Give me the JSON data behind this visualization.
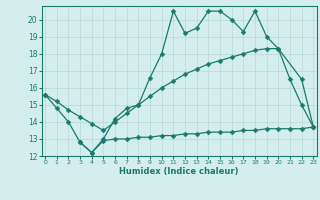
{
  "line1_x": [
    0,
    1,
    2,
    3,
    4,
    5,
    6,
    7,
    8,
    9,
    10,
    11,
    12,
    13,
    14,
    15,
    16,
    17,
    18,
    19,
    20,
    21,
    22,
    23
  ],
  "line1_y": [
    15.6,
    14.8,
    14.0,
    12.8,
    12.2,
    13.0,
    14.2,
    14.8,
    15.0,
    16.6,
    18.0,
    20.5,
    19.2,
    19.5,
    20.5,
    20.5,
    20.0,
    19.3,
    20.5,
    19.0,
    18.3,
    16.5,
    15.0,
    13.7
  ],
  "line2_x": [
    0,
    1,
    2,
    3,
    4,
    5,
    6,
    7,
    8,
    9,
    10,
    11,
    12,
    13,
    14,
    15,
    16,
    17,
    18,
    19,
    20,
    22,
    23
  ],
  "line2_y": [
    15.6,
    15.2,
    14.7,
    14.3,
    13.9,
    13.5,
    14.0,
    14.5,
    15.0,
    15.5,
    16.0,
    16.4,
    16.8,
    17.1,
    17.4,
    17.6,
    17.8,
    18.0,
    18.2,
    18.3,
    18.3,
    16.5,
    13.7
  ],
  "line3_x": [
    3,
    4,
    5,
    6,
    7,
    8,
    9,
    10,
    11,
    12,
    13,
    14,
    15,
    16,
    17,
    18,
    19,
    20,
    21,
    22,
    23
  ],
  "line3_y": [
    12.8,
    12.2,
    12.9,
    13.0,
    13.0,
    13.1,
    13.1,
    13.2,
    13.2,
    13.3,
    13.3,
    13.4,
    13.4,
    13.4,
    13.5,
    13.5,
    13.6,
    13.6,
    13.6,
    13.6,
    13.7
  ],
  "color": "#1a7a6e",
  "bg_color": "#d4eeed",
  "grid_color": "#b8d8d4",
  "xlabel": "Humidex (Indice chaleur)",
  "ylim": [
    12,
    20.8
  ],
  "xlim": [
    -0.3,
    23.3
  ],
  "yticks": [
    12,
    13,
    14,
    15,
    16,
    17,
    18,
    19,
    20
  ],
  "xticks": [
    0,
    1,
    2,
    3,
    4,
    5,
    6,
    7,
    8,
    9,
    10,
    11,
    12,
    13,
    14,
    15,
    16,
    17,
    18,
    19,
    20,
    21,
    22,
    23
  ]
}
